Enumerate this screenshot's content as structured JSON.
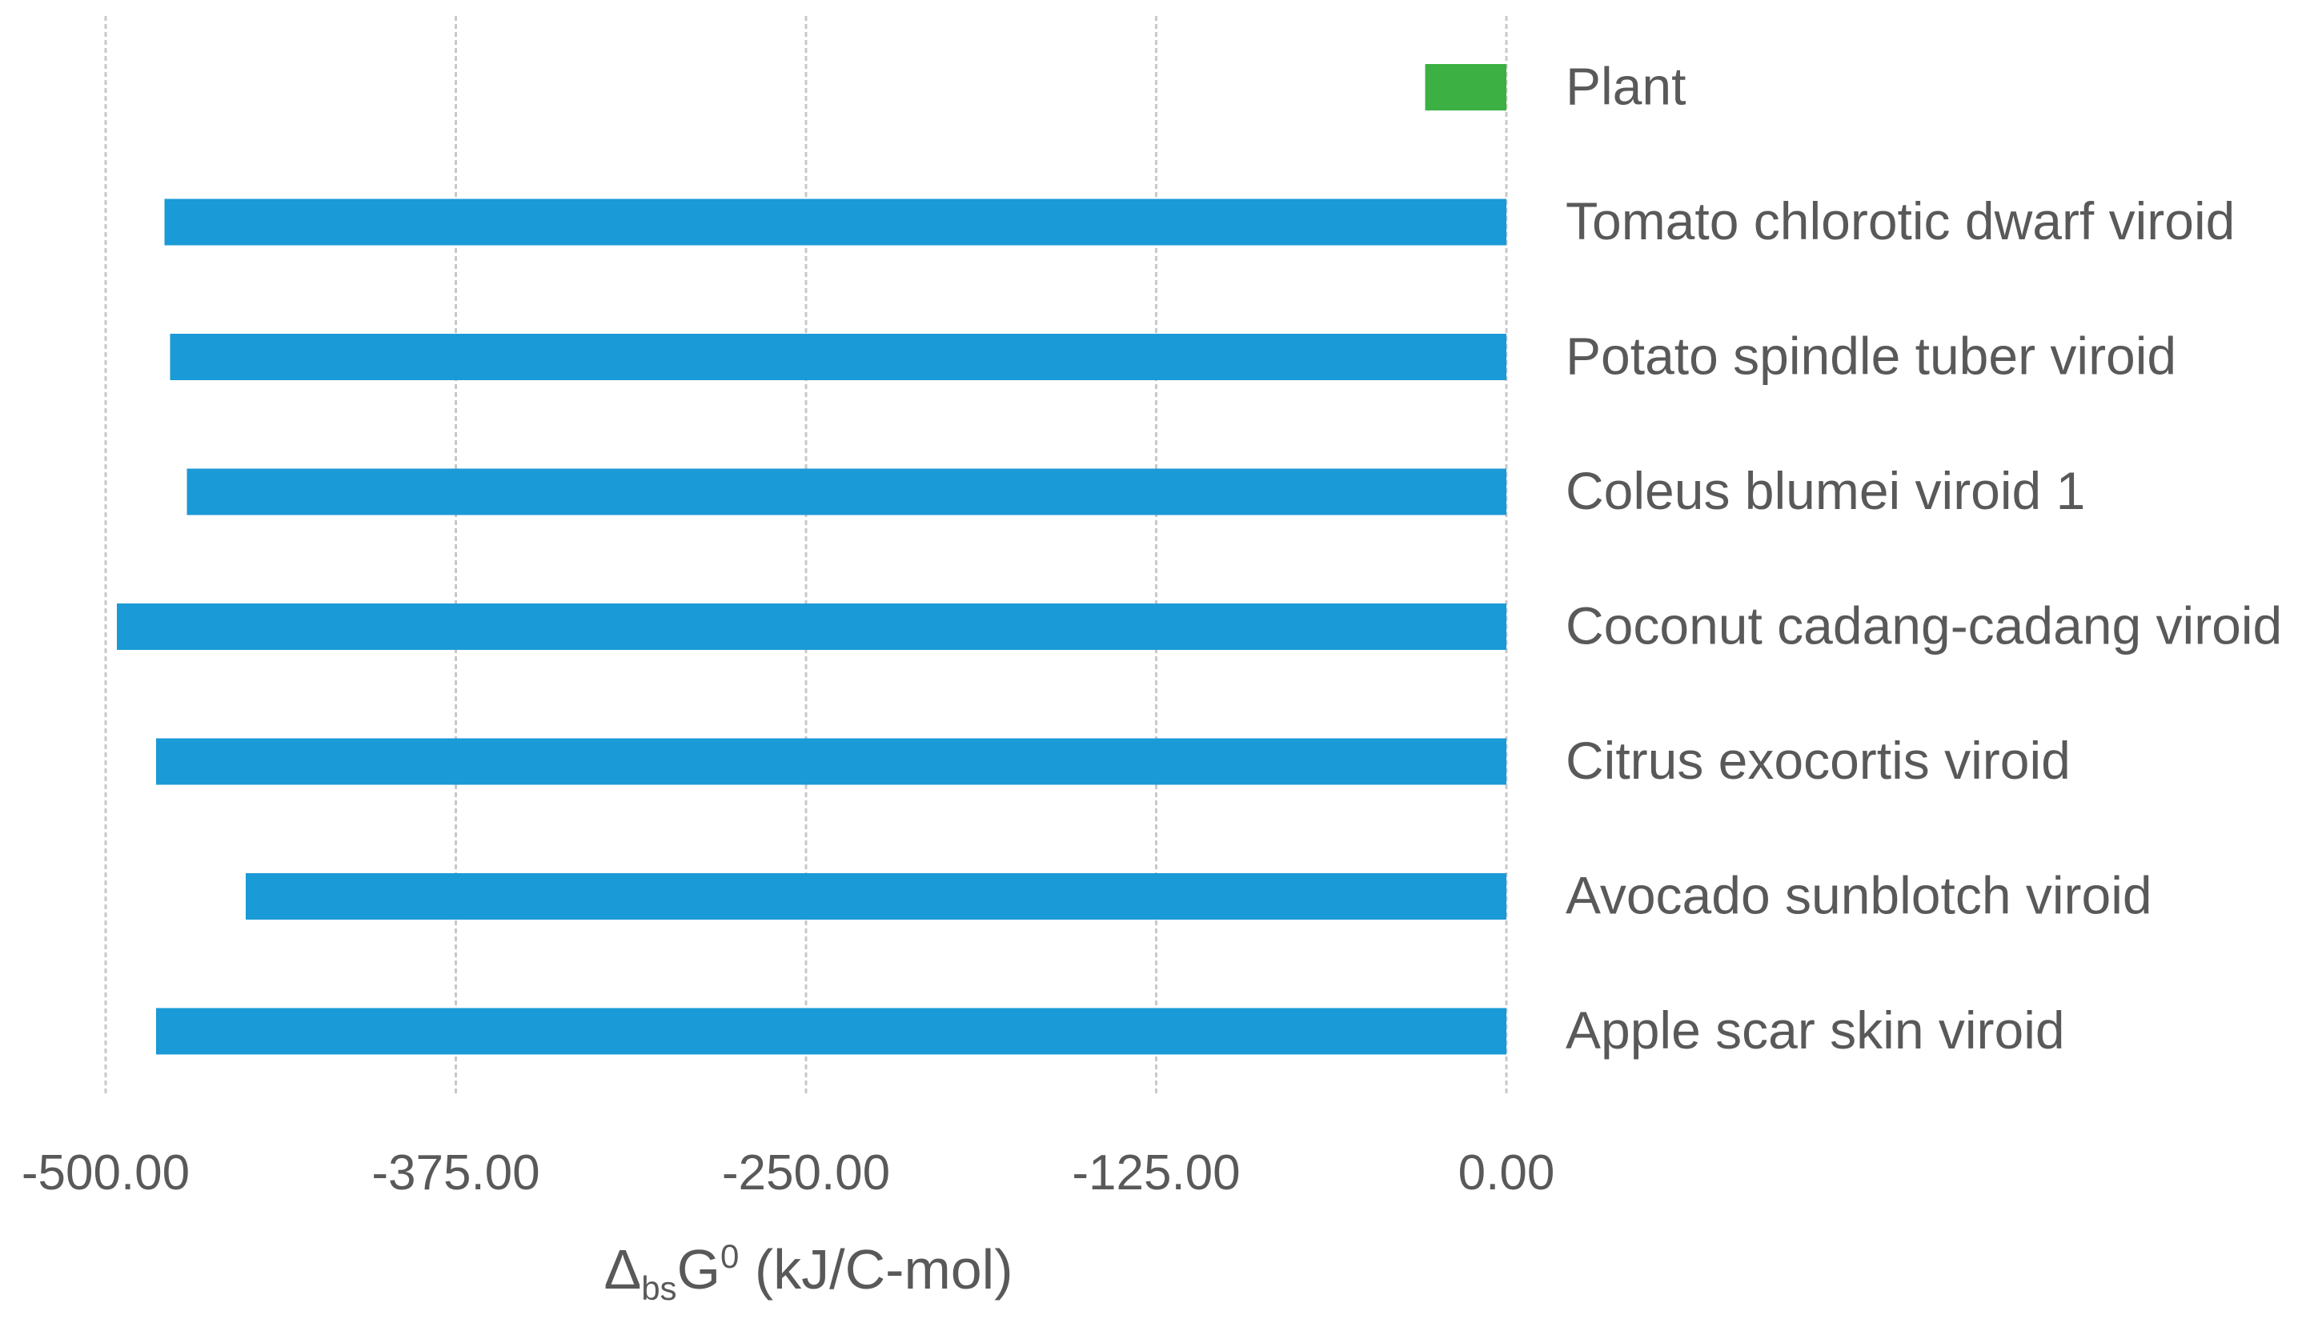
{
  "chart_data": {
    "type": "bar",
    "orientation": "horizontal",
    "categories": [
      "Plant",
      "Tomato chlorotic dwarf viroid",
      "Potato spindle tuber viroid",
      "Coleus blumei viroid 1",
      "Coconut cadang-cadang viroid",
      "Citrus exocortis viroid",
      "Avocado sunblotch viroid",
      "Apple scar skin viroid"
    ],
    "values": [
      -29,
      -479,
      -477,
      -471,
      -496,
      -482,
      -450,
      -482
    ],
    "colors": [
      "#3cb043",
      "#1a9ad6",
      "#1a9ad6",
      "#1a9ad6",
      "#1a9ad6",
      "#1a9ad6",
      "#1a9ad6",
      "#1a9ad6"
    ],
    "xlim": [
      -500,
      0
    ],
    "xticks": [
      "-500.00",
      "-375.00",
      "-250.00",
      "-125.00",
      "0.00"
    ],
    "xtick_values": [
      -500,
      -375,
      -250,
      -125,
      0
    ],
    "xlabel": {
      "main": "Δ",
      "subscript": "bs",
      "symbol": "G",
      "superscript": "0",
      "unit": " (kJ/C-mol)"
    },
    "grid": true,
    "legend": "none"
  }
}
